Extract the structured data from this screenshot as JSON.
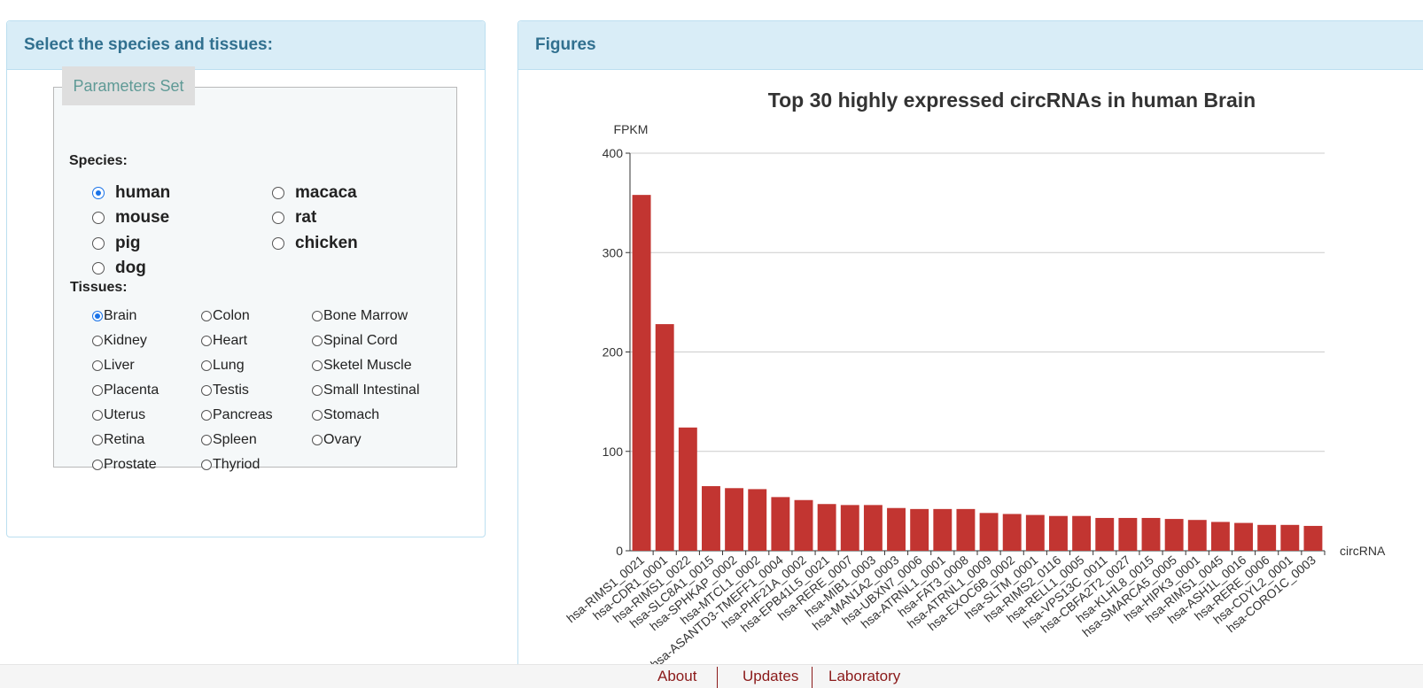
{
  "left_panel": {
    "title": "Select the species and tissues:",
    "fieldset_legend": "Parameters Set",
    "species_label": "Species:",
    "tissues_label": "Tissues:",
    "species": [
      {
        "label": "human",
        "checked": true
      },
      {
        "label": "macaca",
        "checked": false
      },
      {
        "label": "mouse",
        "checked": false
      },
      {
        "label": "rat",
        "checked": false
      },
      {
        "label": "pig",
        "checked": false
      },
      {
        "label": "chicken",
        "checked": false
      },
      {
        "label": "dog",
        "checked": false
      }
    ],
    "tissues": [
      {
        "label": "Brain",
        "checked": true
      },
      {
        "label": "Colon",
        "checked": false
      },
      {
        "label": "Bone Marrow",
        "checked": false
      },
      {
        "label": "Kidney",
        "checked": false
      },
      {
        "label": "Heart",
        "checked": false
      },
      {
        "label": "Spinal Cord",
        "checked": false
      },
      {
        "label": "Liver",
        "checked": false
      },
      {
        "label": "Lung",
        "checked": false
      },
      {
        "label": "Sketel Muscle",
        "checked": false
      },
      {
        "label": "Placenta",
        "checked": false
      },
      {
        "label": "Testis",
        "checked": false
      },
      {
        "label": "Small Intestinal",
        "checked": false
      },
      {
        "label": "Uterus",
        "checked": false
      },
      {
        "label": "Pancreas",
        "checked": false
      },
      {
        "label": "Stomach",
        "checked": false
      },
      {
        "label": "Retina",
        "checked": false
      },
      {
        "label": "Spleen",
        "checked": false
      },
      {
        "label": "Ovary",
        "checked": false
      },
      {
        "label": "Prostate",
        "checked": false
      },
      {
        "label": "Thyriod",
        "checked": false
      }
    ]
  },
  "right_panel": {
    "title": "Figures"
  },
  "chart_data": {
    "type": "bar",
    "title": "Top 30 highly expressed circRNAs in human Brain",
    "ylabel": "FPKM",
    "xlabel": "circRNA",
    "ylim": [
      0,
      400
    ],
    "yticks": [
      "0",
      "100",
      "200",
      "300",
      "400"
    ],
    "grid": true,
    "bar_color": "#c23531",
    "categories": [
      "hsa-RIMS1_0021",
      "hsa-CDR1_0001",
      "hsa-RIMS1_0022",
      "hsa-SLC8A1_0015",
      "hsa-SPHKAP_0002",
      "hsa-MTCL1_0002",
      "hsa-ASANTD3-TMEFF1_0004",
      "hsa-PHF21A_0002",
      "hsa-EPB41L5_0021",
      "hsa-RERE_0007",
      "hsa-MIB1_0003",
      "hsa-MAN1A2_0003",
      "hsa-UBXN7_0006",
      "hsa-ATRNL1_0001",
      "hsa-FAT3_0008",
      "hsa-ATRNL1_0009",
      "hsa-EXOC6B_0002",
      "hsa-SLTM_0001",
      "hsa-RIMS2_0116",
      "hsa-RELL1_0005",
      "hsa-VPS13C_0011",
      "hsa-CBFA2T2_0027",
      "hsa-KLHL8_0015",
      "hsa-SMARCA5_0005",
      "hsa-HIPK3_0001",
      "hsa-RIMS1_0045",
      "hsa-ASH1L_0016",
      "hsa-RERE_0006",
      "hsa-CDYL2_0001",
      "hsa-CORO1C_0003"
    ],
    "values": [
      358,
      228,
      124,
      65,
      63,
      62,
      54,
      51,
      47,
      46,
      46,
      43,
      42,
      42,
      42,
      38,
      37,
      36,
      35,
      35,
      33,
      33,
      33,
      32,
      31,
      29,
      28,
      26,
      26,
      25
    ]
  },
  "footer": {
    "links": [
      "About",
      "Updates",
      "Laboratory"
    ]
  }
}
